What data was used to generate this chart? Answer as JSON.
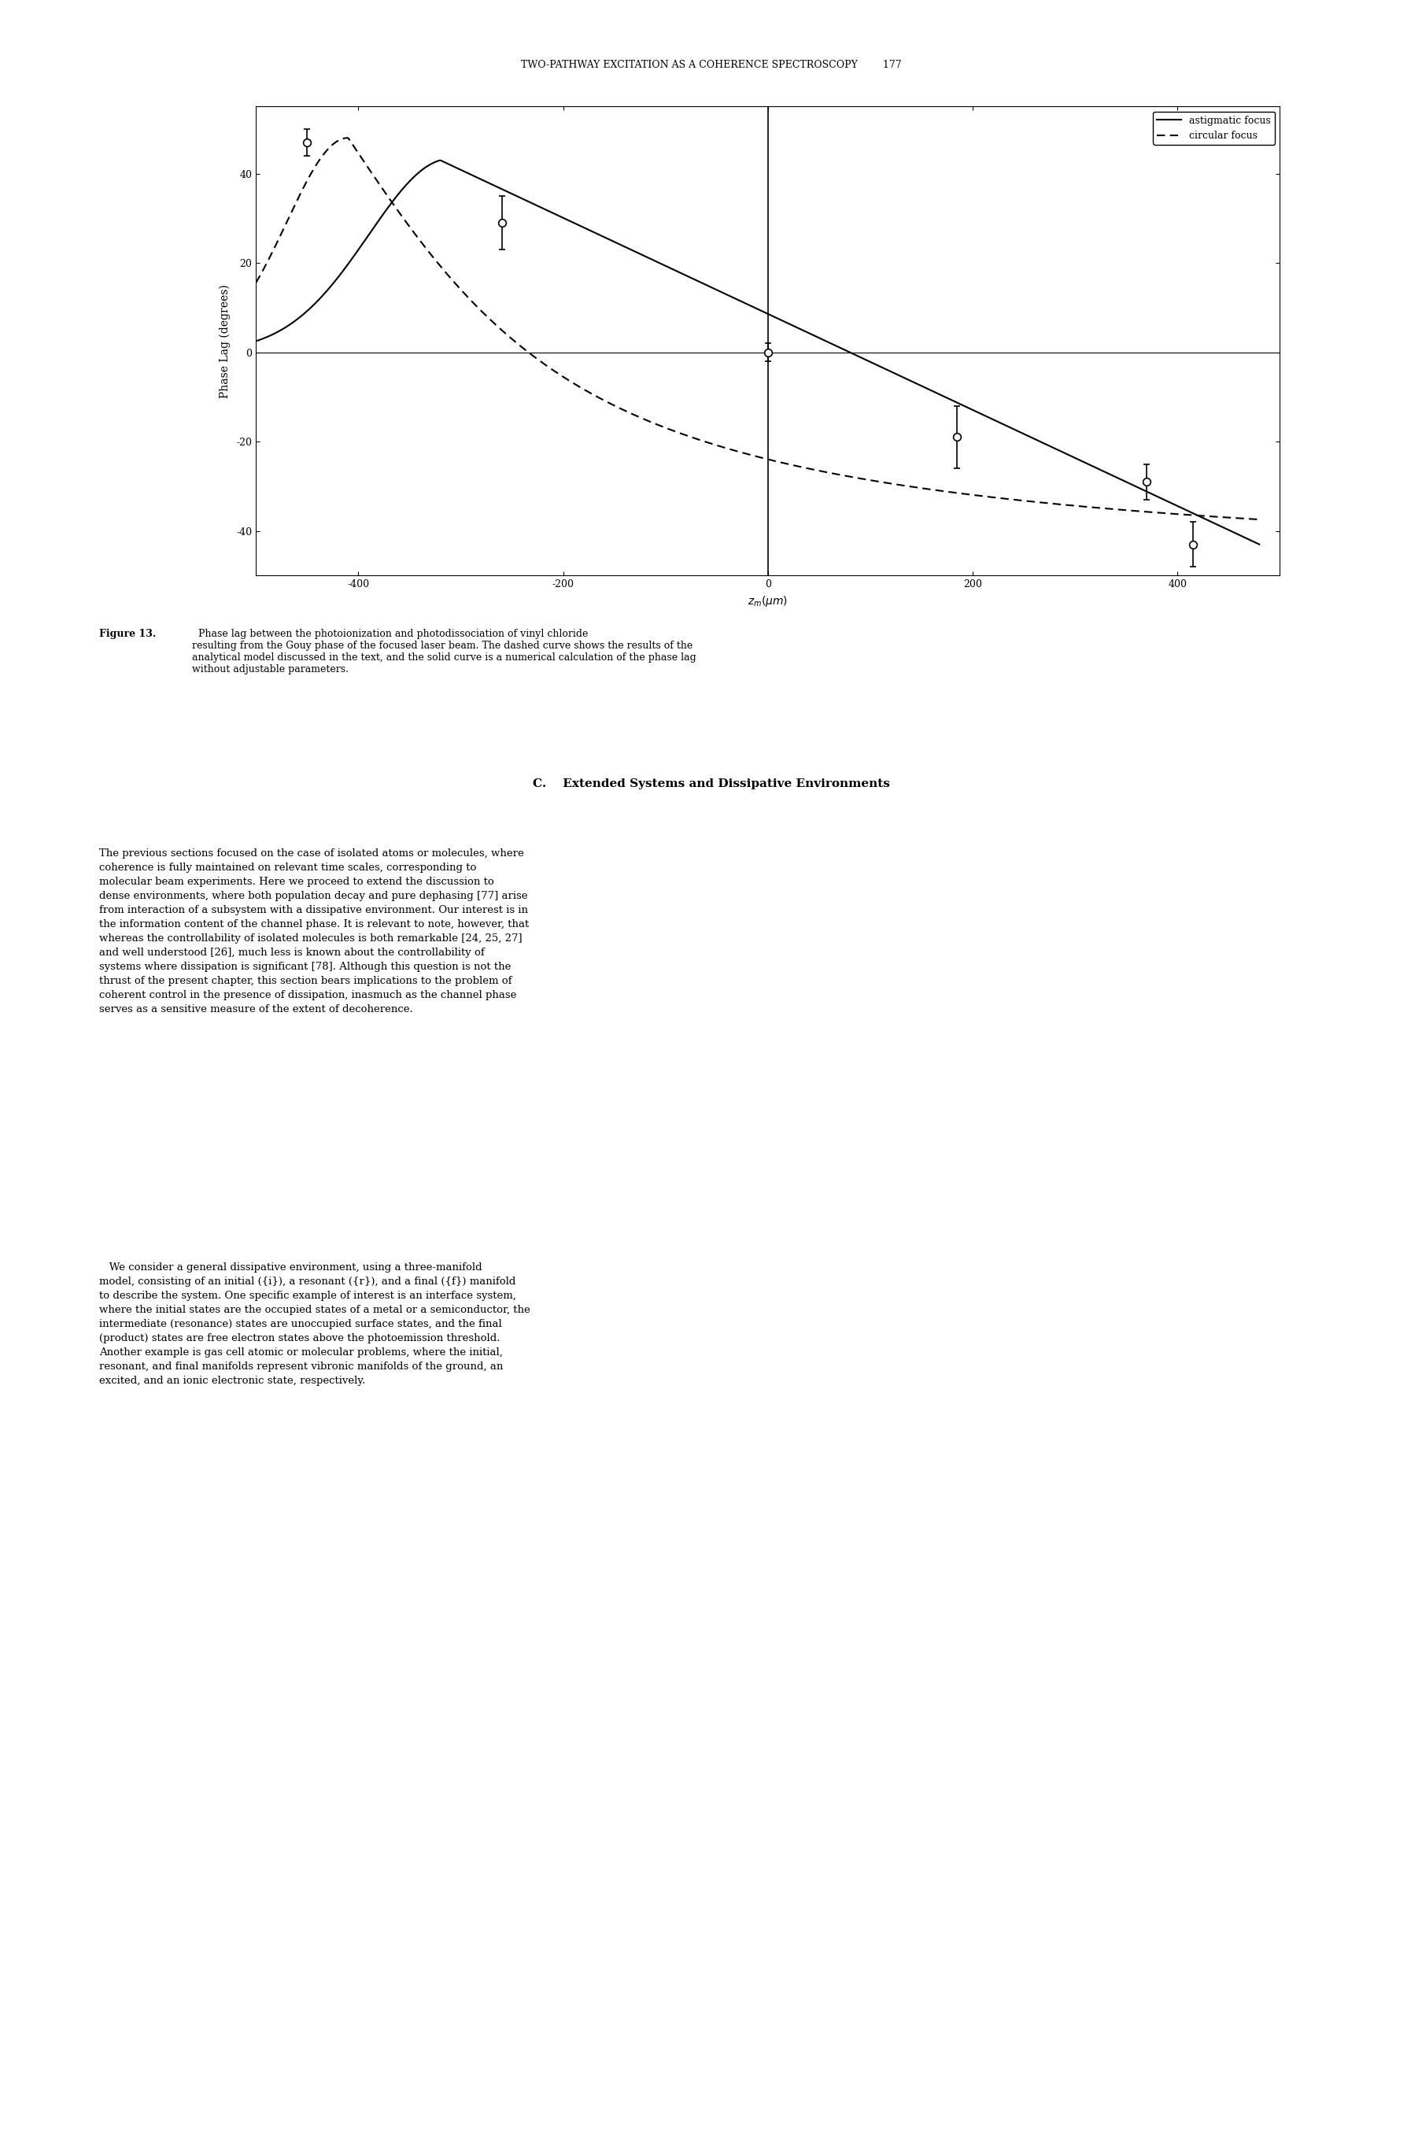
{
  "title": "TWO-PATHWAY EXCITATION AS A COHERENCE SPECTROSCOPY",
  "page_number": "177",
  "xlabel": "z_m(μm)",
  "ylabel": "Phase Lag (degrees)",
  "xlim": [
    -500,
    500
  ],
  "ylim": [
    -50,
    55
  ],
  "xticks": [
    -400,
    -200,
    0,
    200,
    400
  ],
  "yticks": [
    -40,
    -20,
    0,
    20,
    40
  ],
  "data_points": {
    "x": [
      -450,
      -260,
      0,
      185,
      370,
      415
    ],
    "y": [
      47,
      29,
      0,
      -19,
      -29,
      -43
    ],
    "yerr": [
      3,
      6,
      2,
      7,
      4,
      5
    ]
  },
  "legend_solid": "astigmatic focus",
  "legend_dashed": "circular focus",
  "figure_label": "Figure 13.",
  "figure_caption": "Phase lag between the photoionization and photodissociation of vinyl chloride resulting from the Gouy phase of the focused laser beam. The dashed curve shows the results of the analytical model discussed in the text, and the solid curve is a numerical calculation of the phase lag without adjustable parameters.",
  "body_text_title": "C.    Extended Systems and Dissipative Environments",
  "body_paragraph1": "The previous sections focused on the case of isolated atoms or molecules, where coherence is fully maintained on relevant time scales, corresponding to molecular beam experiments. Here we proceed to extend the discussion to dense environments, where both population decay and pure dephasing [77] arise from interaction of a subsystem with a dissipative environment. Our interest is in the information content of the channel phase. It is relevant to note, however, that whereas the controllability of isolated molecules is both remarkable [24, 25, 27] and well understood [26], much less is known about the controllability of systems where dissipation is significant [78]. Although this question is not the thrust of the present chapter, this section bears implications to the problem of coherent control in the presence of dissipation, inasmuch as the channel phase serves as a sensitive measure of the extent of decoherence.",
  "body_paragraph2": "We consider a general dissipative environment, using a three-manifold model, consisting of an initial ({i}), a resonant ({r}), and a final ({f}) manifold to describe the system. One specific example of interest is an interface system, where the initial states are the occupied states of a metal or a semiconductor, the intermediate (resonance) states are unoccupied surface states, and the final (product) states are free electron states above the photoemission threshold. Another example is gas cell atomic or molecular problems, where the initial, resonant, and final manifolds represent vibronic manifolds of the ground, an excited, and an ionic electronic state, respectively.",
  "background_color": "#ffffff",
  "line_color": "#000000"
}
